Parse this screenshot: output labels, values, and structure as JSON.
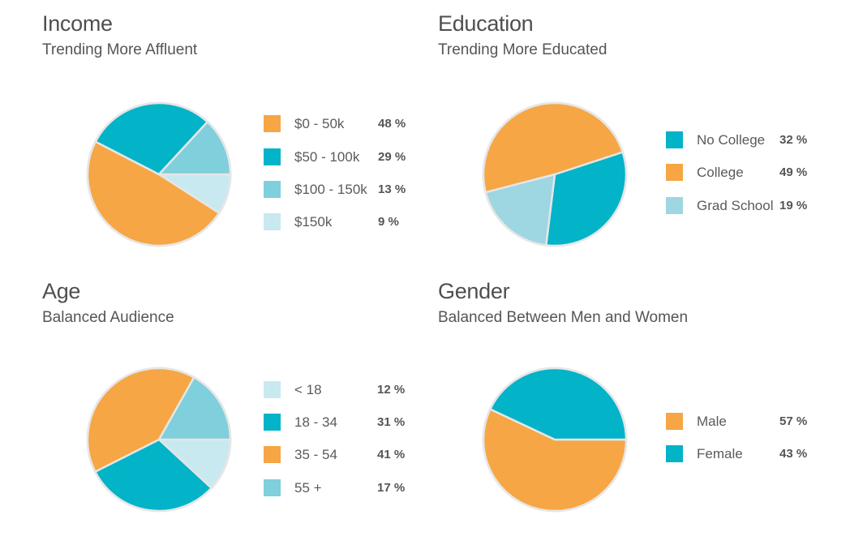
{
  "colors": {
    "orange": "#f6a644",
    "teal": "#03b3c8",
    "lightblue": "#7fcfdc",
    "palecyan": "#c8e9ef",
    "stroke": "#e6e6e6"
  },
  "chart_data": [
    {
      "type": "pie",
      "title": "Income",
      "subtitle": "Trending More Affluent",
      "legend": [
        {
          "label": "$0 - 50k",
          "percent": "48 %",
          "color": "#f6a644"
        },
        {
          "label": "$50 - 100k",
          "percent": "29 %",
          "color": "#03b3c8"
        },
        {
          "label": "$100 - 150k",
          "percent": "13 %",
          "color": "#7fcfdc"
        },
        {
          "label": "$150k",
          "percent": "9 %",
          "color": "#c8e9ef"
        }
      ],
      "slices": [
        {
          "label": "$150k",
          "value": 9,
          "color": "#c8e9ef"
        },
        {
          "label": "$0 - 50k",
          "value": 48,
          "color": "#f6a644"
        },
        {
          "label": "$50 - 100k",
          "value": 29,
          "color": "#03b3c8"
        },
        {
          "label": "$100 - 150k",
          "value": 13,
          "color": "#7fcfdc"
        }
      ]
    },
    {
      "type": "pie",
      "title": "Education",
      "subtitle": "Trending More Educated",
      "legend": [
        {
          "label": "No College",
          "percent": "32 %",
          "color": "#03b3c8"
        },
        {
          "label": "College",
          "percent": "49 %",
          "color": "#f6a644"
        },
        {
          "label": "Grad School",
          "percent": "19 %",
          "color": "#9ed6e2"
        }
      ],
      "slices": [
        {
          "label": "No College",
          "value": 32,
          "color": "#03b3c8"
        },
        {
          "label": "College",
          "value": 49,
          "color": "#f6a644"
        },
        {
          "label": "Grad School",
          "value": 19,
          "color": "#9ed6e2"
        }
      ]
    },
    {
      "type": "pie",
      "title": "Age",
      "subtitle": "Balanced Audience",
      "legend": [
        {
          "label": "< 18",
          "percent": "12 %",
          "color": "#c8e9ef"
        },
        {
          "label": "18 - 34",
          "percent": "31 %",
          "color": "#03b3c8"
        },
        {
          "label": "35 - 54",
          "percent": "41 %",
          "color": "#f6a644"
        },
        {
          "label": "55 +",
          "percent": "17 %",
          "color": "#7fcfdc"
        }
      ],
      "slices": [
        {
          "label": "< 18",
          "value": 12,
          "color": "#c8e9ef"
        },
        {
          "label": "18 - 34",
          "value": 31,
          "color": "#03b3c8"
        },
        {
          "label": "35 - 54",
          "value": 41,
          "color": "#f6a644"
        },
        {
          "label": "55 +",
          "value": 17,
          "color": "#7fcfdc"
        }
      ]
    },
    {
      "type": "pie",
      "title": "Gender",
      "subtitle": "Balanced Between Men and Women",
      "legend": [
        {
          "label": "Male",
          "percent": "57 %",
          "color": "#f6a644"
        },
        {
          "label": "Female",
          "percent": "43 %",
          "color": "#03b3c8"
        }
      ],
      "slices": [
        {
          "label": "Male",
          "value": 57,
          "color": "#f6a644"
        },
        {
          "label": "Female",
          "value": 43,
          "color": "#03b3c8"
        }
      ]
    }
  ]
}
